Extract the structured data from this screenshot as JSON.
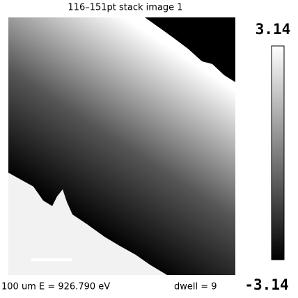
{
  "header": {
    "title": "116–151pt stack image 1"
  },
  "colorbar": {
    "max_label": "3.14",
    "min_label": "-3.14"
  },
  "status": {
    "scale": "100 um",
    "energy": "E =  926.790 eV",
    "dwell": "dwell =  9"
  }
}
